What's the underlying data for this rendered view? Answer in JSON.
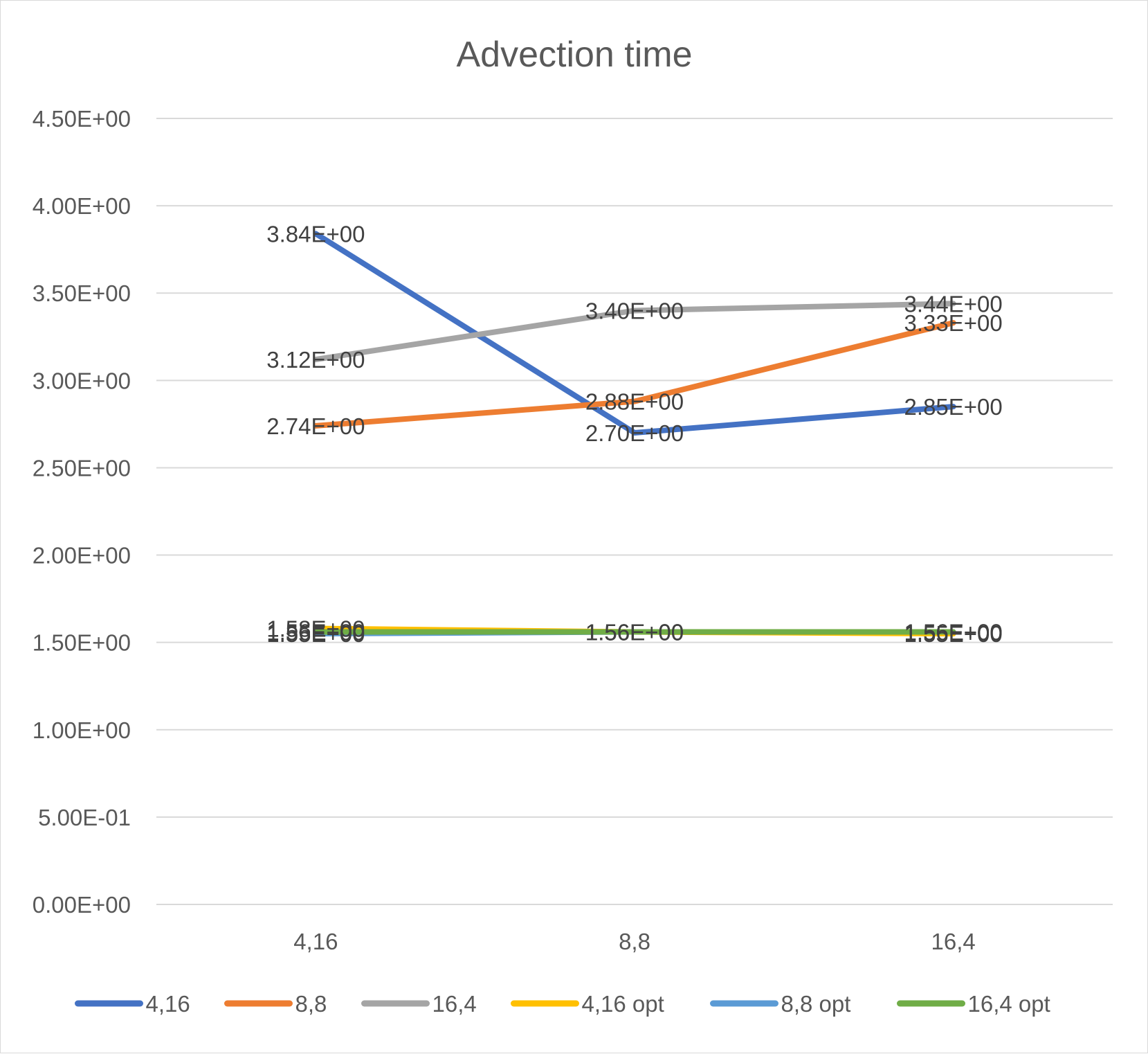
{
  "chart_data": {
    "type": "line",
    "title": "Advection time",
    "xlabel": "",
    "ylabel": "",
    "categories": [
      "4,16",
      "8,8",
      "16,4"
    ],
    "ylim": [
      0,
      4.5
    ],
    "yticks": [
      0,
      0.5,
      1,
      1.5,
      2,
      2.5,
      3,
      3.5,
      4,
      4.5
    ],
    "ytick_labels": [
      "0.00E+00",
      "5.00E-01",
      "1.00E+00",
      "1.50E+00",
      "2.00E+00",
      "2.50E+00",
      "3.00E+00",
      "3.50E+00",
      "4.00E+00",
      "4.50E+00"
    ],
    "grid": true,
    "legend_position": "bottom",
    "series": [
      {
        "name": "4,16",
        "color": "#4472C4",
        "values": [
          3.84,
          2.7,
          2.85
        ],
        "labels": [
          "3.84E+00",
          "2.70E+00",
          "2.85E+00"
        ]
      },
      {
        "name": "8,8",
        "color": "#ED7D31",
        "values": [
          2.74,
          2.88,
          3.33
        ],
        "labels": [
          "2.74E+00",
          "2.88E+00",
          "3.33E+00"
        ]
      },
      {
        "name": "16,4",
        "color": "#A5A5A5",
        "values": [
          3.12,
          3.4,
          3.44
        ],
        "labels": [
          "3.12E+00",
          "3.40E+00",
          "3.44E+00"
        ]
      },
      {
        "name": "4,16 opt",
        "color": "#FFC000",
        "values": [
          1.58,
          1.56,
          1.55
        ],
        "labels": [
          "1.58E+00",
          "1.56E+00",
          "1.55E+00"
        ]
      },
      {
        "name": "8,8 opt",
        "color": "#5B9BD5",
        "values": [
          1.55,
          1.56,
          1.56
        ],
        "labels": [
          "1.55E+00",
          "1.56E+00",
          "1.56E+00"
        ]
      },
      {
        "name": "16,4 opt",
        "color": "#70AD47",
        "values": [
          1.56,
          1.56,
          1.56
        ],
        "labels": [
          "1.56E+00",
          "1.56E+00",
          "1.56E+00"
        ]
      }
    ]
  }
}
